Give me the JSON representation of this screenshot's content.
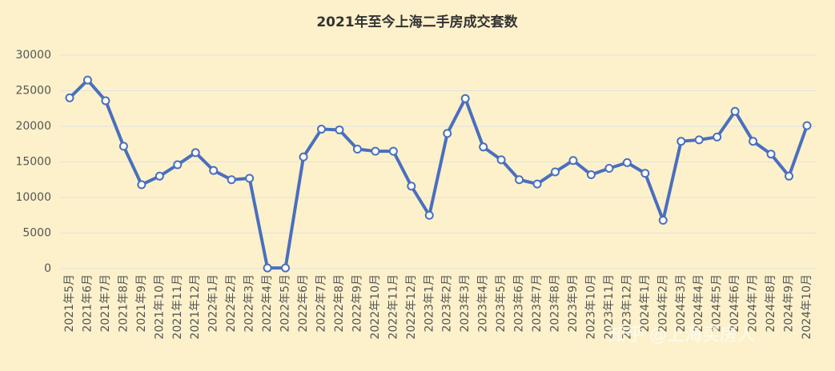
{
  "chart_data": {
    "type": "line",
    "title": "2021年至今上海二手房成交套数",
    "watermark": "知乎 @上海买房人",
    "categories": [
      "2021年5月",
      "2021年6月",
      "2021年7月",
      "2021年8月",
      "2021年9月",
      "2021年10月",
      "2021年11月",
      "2021年12月",
      "2022年1月",
      "2022年2月",
      "2022年3月",
      "2022年4月",
      "2022年5月",
      "2022年6月",
      "2022年7月",
      "2022年8月",
      "2022年9月",
      "2022年10月",
      "2022年11月",
      "2022年12月",
      "2023年1月",
      "2023年2月",
      "2023年3月",
      "2023年4月",
      "2023年5月",
      "2023年6月",
      "2023年7月",
      "2023年8月",
      "2023年9月",
      "2023年10月",
      "2023年11月",
      "2023年12月",
      "2024年1月",
      "2024年2月",
      "2024年3月",
      "2024年4月",
      "2024年5月",
      "2024年6月",
      "2024年7月",
      "2024年8月",
      "2024年9月",
      "2024年10月"
    ],
    "series": [
      {
        "name": "成交套数",
        "color": "#4a6fbf",
        "values": [
          24000,
          26500,
          23600,
          17200,
          11800,
          13000,
          14600,
          16300,
          13800,
          12500,
          12700,
          100,
          100,
          15700,
          19600,
          19500,
          16800,
          16500,
          16500,
          11600,
          7500,
          19000,
          23900,
          17100,
          15300,
          12500,
          11900,
          13600,
          15200,
          13200,
          14100,
          14900,
          13400,
          6800,
          17900,
          18100,
          18500,
          22100,
          17900,
          16100,
          13000,
          20100
        ]
      }
    ],
    "ylim": [
      0,
      30000
    ],
    "yticks": [
      0,
      5000,
      10000,
      15000,
      20000,
      25000,
      30000
    ],
    "grid": true
  }
}
